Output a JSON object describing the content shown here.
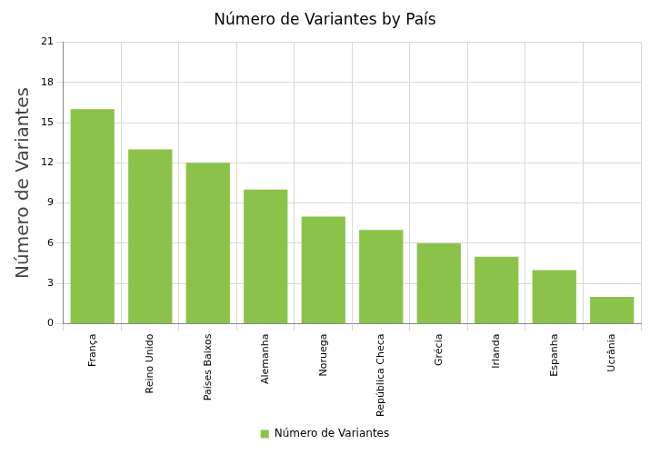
{
  "chart_data": {
    "type": "bar",
    "title": "Número de Variantes by País",
    "y_label": "Número de Variantes",
    "categories": [
      "França",
      "Reino Unido",
      "Países Baixos",
      "Alemanha",
      "Noruega",
      "República Checa",
      "Grécia",
      "Irlanda",
      "Espanha",
      "Ucrânia"
    ],
    "series": [
      {
        "name": "Número de Variantes",
        "color": "#8bc34a",
        "values": [
          16,
          13,
          12,
          10,
          8,
          7,
          6,
          5,
          4,
          2
        ]
      }
    ],
    "ylim": [
      0,
      21
    ],
    "yticks": [
      0,
      3,
      6,
      9,
      12,
      15,
      18,
      21
    ],
    "grid": true,
    "legend": "bottom"
  }
}
